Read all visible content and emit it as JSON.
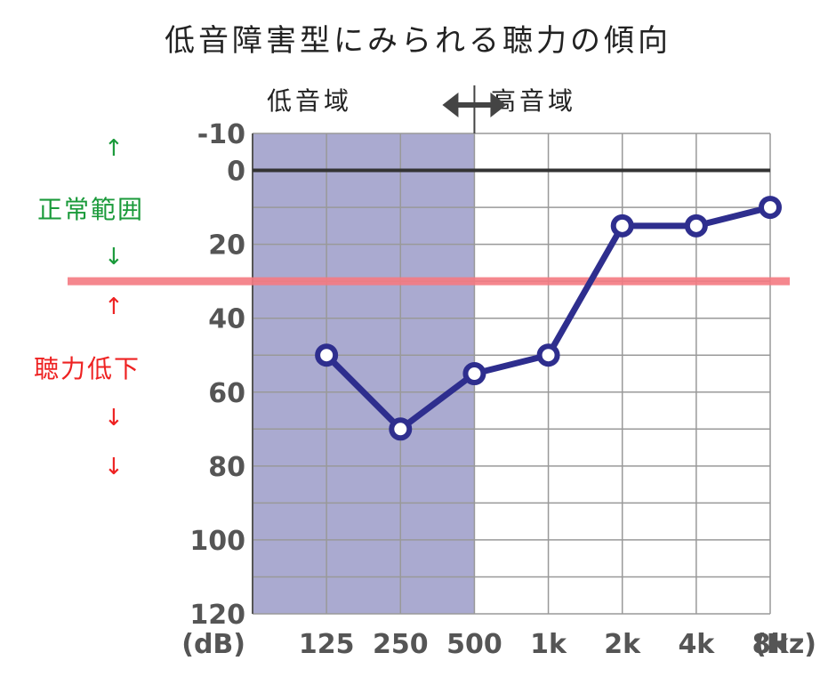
{
  "page": {
    "title": "低音障害型にみられる聴力の傾向",
    "low_region_label": "低音域",
    "high_region_label": "高音域",
    "normal_label": "正常範囲",
    "loss_label": "聴力低下",
    "arrow_up": "↑",
    "arrow_down": "↓"
  },
  "colors": {
    "normal_label": "#1a9a3a",
    "loss_label": "#ee2222",
    "threshold_line": "#f47a82",
    "low_region_shade": "#aaaad0",
    "series_line": "#2e2e8e",
    "zero_line": "#333333",
    "grid": "#999999"
  },
  "chart_data": {
    "type": "line",
    "title": "低音障害型にみられる聴力の傾向",
    "x_unit": "(Hz)",
    "y_unit": "(dB)",
    "categories": [
      "125",
      "250",
      "500",
      "1k",
      "2k",
      "4k",
      "8k"
    ],
    "series": [
      {
        "values": [
          50,
          70,
          55,
          50,
          15,
          15,
          10
        ]
      }
    ],
    "y_range": [
      -10,
      120
    ],
    "y_inverted": true,
    "y_ticks": [
      -10,
      0,
      20,
      40,
      60,
      80,
      100,
      120
    ],
    "grid": true,
    "shaded_region": {
      "from": "125",
      "to": "500",
      "label": "低音域"
    },
    "threshold": 30,
    "zero_line": 0
  }
}
